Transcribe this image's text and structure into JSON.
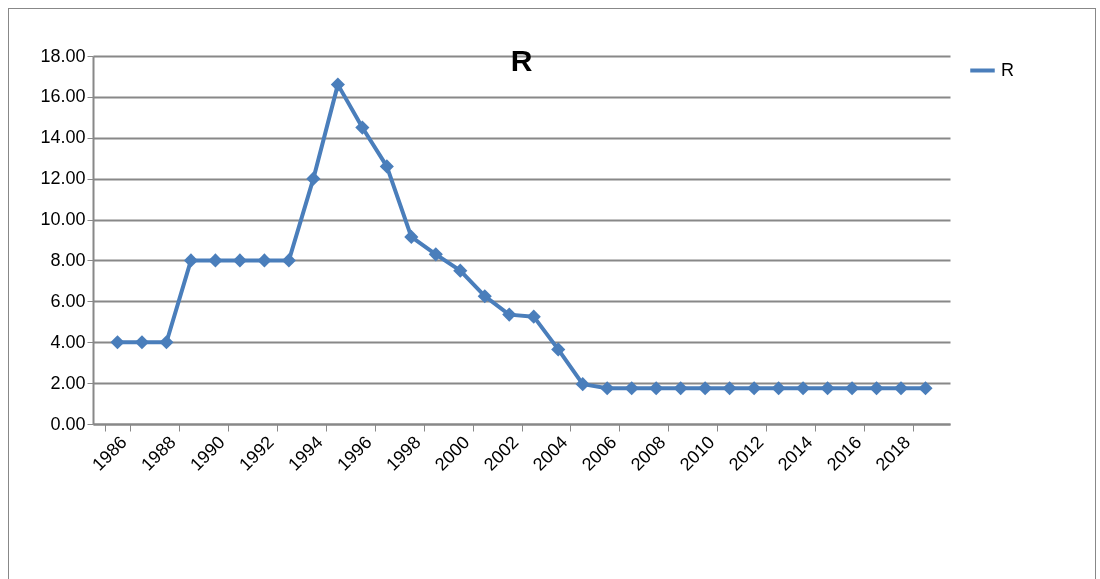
{
  "chart_data": {
    "type": "line",
    "title": "R",
    "categories": [
      "1986",
      null,
      "1988",
      null,
      "1990",
      null,
      "1992",
      null,
      "1994",
      null,
      "1996",
      null,
      "1998",
      null,
      "2000",
      null,
      "2002",
      null,
      "2004",
      null,
      "2006",
      null,
      "2008",
      null,
      "2010",
      null,
      "2012",
      null,
      "2014",
      null,
      "2016",
      null,
      "2018",
      null
    ],
    "series": [
      {
        "name": "R",
        "color": "#4a7ebb",
        "values": [
          4,
          4,
          4,
          8,
          8,
          8,
          8,
          8,
          12,
          16.6,
          14.5,
          12.6,
          9.15,
          8.3,
          7.5,
          6.25,
          5.35,
          5.25,
          3.65,
          1.95,
          1.75,
          1.75,
          1.75,
          1.75,
          1.75,
          1.75,
          1.75,
          1.75,
          1.75,
          1.75,
          1.75,
          1.75,
          1.75,
          1.75
        ]
      }
    ],
    "ylim": [
      0,
      18
    ],
    "yticks": [
      {
        "value": 0,
        "label": "0.00"
      },
      {
        "value": 2,
        "label": "2.00"
      },
      {
        "value": 4,
        "label": "4.00"
      },
      {
        "value": 6,
        "label": "6.00"
      },
      {
        "value": 8,
        "label": "8.00"
      },
      {
        "value": 10,
        "label": "10.00"
      },
      {
        "value": 12,
        "label": "12.00"
      },
      {
        "value": 14,
        "label": "14.00"
      },
      {
        "value": 16,
        "label": "16.00"
      },
      {
        "value": 18,
        "label": "18.00"
      }
    ],
    "grid": "y",
    "legend": "right",
    "marker": "diamond",
    "line_style": "solid"
  }
}
